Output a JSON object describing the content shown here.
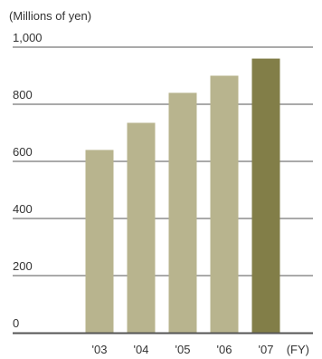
{
  "chart_data": {
    "type": "bar",
    "unit_label": "(Millions of yen)",
    "x_unit": "(FY)",
    "categories": [
      "'03",
      "'04",
      "'05",
      "'06",
      "'07"
    ],
    "values": [
      640,
      735,
      840,
      900,
      960
    ],
    "yticks": [
      "1,000",
      "800",
      "600",
      "400",
      "200",
      "0"
    ],
    "ytick_values": [
      1000,
      800,
      600,
      400,
      200,
      0
    ],
    "ylim": [
      0,
      1000
    ],
    "grid": true,
    "colors": {
      "bar": "#b8b48e",
      "highlight_bar": "#827e48",
      "grid": "#555555",
      "baseline": "#555555",
      "text": "#333333"
    },
    "highlight_index": 4
  }
}
